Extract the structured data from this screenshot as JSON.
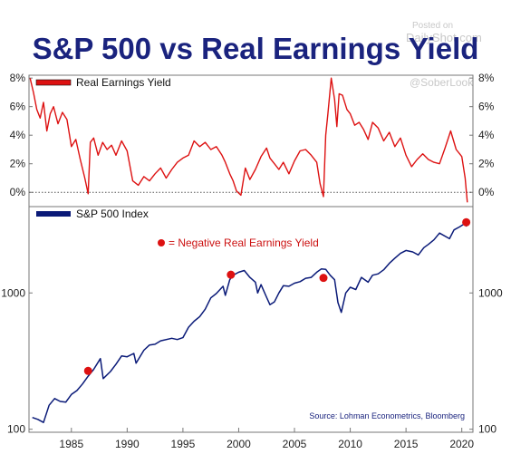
{
  "chart_data": {
    "title": "S&P 500 vs Real Earnings Yield",
    "watermark": {
      "line1": "Posted on",
      "line2": "DailyShot.com",
      "line3": "@SoberLook"
    },
    "source": "Source: Lohman Econometrics, Bloomberg",
    "x_ticks": [
      "1985",
      "1990",
      "1995",
      "2000",
      "2005",
      "2010",
      "2015",
      "2020"
    ],
    "xlim": [
      1981.2,
      2021.0
    ],
    "colors": {
      "title": "#1a237e",
      "yield": "#dd1111",
      "index": "#0a1a78",
      "marker": "#dd1111"
    },
    "panels": [
      {
        "type": "line",
        "legend": "Real Earnings Yield",
        "y_ticks": [
          "8%",
          "6%",
          "4%",
          "2%",
          "0%"
        ],
        "ylim": [
          -1.0,
          8.2
        ],
        "zero_line": true,
        "series": {
          "x": [
            1981.3,
            1981.6,
            1981.9,
            1982.2,
            1982.5,
            1982.8,
            1983.1,
            1983.4,
            1983.8,
            1984.2,
            1984.6,
            1985.0,
            1985.4,
            1985.8,
            1986.2,
            1986.5,
            1986.7,
            1987.0,
            1987.4,
            1987.8,
            1988.2,
            1988.6,
            1989.0,
            1989.5,
            1990.0,
            1990.5,
            1991.0,
            1991.5,
            1992.0,
            1992.5,
            1993.0,
            1993.5,
            1994.0,
            1994.5,
            1995.0,
            1995.5,
            1996.0,
            1996.5,
            1997.0,
            1997.5,
            1998.0,
            1998.5,
            1998.8,
            1999.2,
            1999.5,
            1999.8,
            2000.2,
            2000.6,
            2001.0,
            2001.5,
            2002.0,
            2002.5,
            2002.8,
            2003.2,
            2003.6,
            2004.0,
            2004.5,
            2005.0,
            2005.5,
            2006.0,
            2006.5,
            2007.0,
            2007.3,
            2007.6,
            2007.8,
            2008.0,
            2008.3,
            2008.6,
            2008.8,
            2009.0,
            2009.3,
            2009.7,
            2010.0,
            2010.4,
            2010.8,
            2011.2,
            2011.6,
            2012.0,
            2012.5,
            2013.0,
            2013.5,
            2014.0,
            2014.5,
            2015.0,
            2015.5,
            2016.0,
            2016.5,
            2017.0,
            2017.5,
            2018.0,
            2018.5,
            2019.0,
            2019.5,
            2020.0,
            2020.3,
            2020.5
          ],
          "y": [
            8.0,
            7.0,
            5.8,
            5.2,
            6.3,
            4.3,
            5.5,
            6.0,
            4.8,
            5.6,
            5.1,
            3.2,
            3.7,
            2.3,
            1.0,
            -0.1,
            3.5,
            3.8,
            2.6,
            3.5,
            3.0,
            3.3,
            2.6,
            3.6,
            2.9,
            0.8,
            0.5,
            1.1,
            0.8,
            1.3,
            1.7,
            1.0,
            1.6,
            2.1,
            2.4,
            2.6,
            3.6,
            3.2,
            3.5,
            3.0,
            3.2,
            2.6,
            2.1,
            1.3,
            0.8,
            0.1,
            -0.2,
            1.7,
            0.9,
            1.6,
            2.5,
            3.1,
            2.4,
            2.0,
            1.6,
            2.1,
            1.3,
            2.2,
            2.9,
            3.0,
            2.6,
            2.1,
            0.6,
            -0.3,
            4.0,
            5.5,
            8.0,
            6.5,
            4.6,
            6.9,
            6.8,
            5.8,
            5.5,
            4.7,
            4.9,
            4.4,
            3.7,
            4.9,
            4.5,
            3.6,
            4.2,
            3.2,
            3.8,
            2.6,
            1.8,
            2.3,
            2.7,
            2.3,
            2.1,
            2.0,
            3.1,
            4.3,
            3.0,
            2.5,
            1.0,
            -0.7
          ]
        }
      },
      {
        "type": "line",
        "scale": "log",
        "legend": "S&P 500 Index",
        "y_ticks": [
          "1000",
          "100"
        ],
        "ylim": [
          95,
          4300
        ],
        "annotation": "= Negative Real Earnings Yield",
        "series": {
          "x": [
            1981.5,
            1982.0,
            1982.5,
            1983.0,
            1983.5,
            1984.0,
            1984.5,
            1985.0,
            1985.5,
            1986.0,
            1986.5,
            1987.0,
            1987.6,
            1987.85,
            1988.5,
            1989.0,
            1989.5,
            1990.0,
            1990.6,
            1990.8,
            1991.5,
            1992.0,
            1992.5,
            1993.0,
            1994.0,
            1994.5,
            1995.0,
            1995.5,
            1996.0,
            1996.5,
            1997.0,
            1997.5,
            1998.0,
            1998.6,
            1998.8,
            1999.2,
            1999.5,
            2000.0,
            2000.5,
            2001.0,
            2001.5,
            2001.7,
            2002.0,
            2002.5,
            2002.8,
            2003.2,
            2003.6,
            2004.0,
            2004.5,
            2005.0,
            2005.5,
            2006.0,
            2006.5,
            2007.0,
            2007.4,
            2007.8,
            2008.2,
            2008.6,
            2008.9,
            2009.2,
            2009.6,
            2010.0,
            2010.5,
            2011.0,
            2011.6,
            2012.0,
            2012.5,
            2013.0,
            2013.5,
            2014.0,
            2014.5,
            2015.0,
            2015.6,
            2016.1,
            2016.6,
            2017.0,
            2017.5,
            2018.0,
            2018.9,
            2019.3,
            2019.8,
            2020.2,
            2020.4,
            2020.7
          ],
          "y": [
            122,
            118,
            112,
            150,
            168,
            160,
            158,
            180,
            192,
            215,
            245,
            275,
            330,
            235,
            265,
            300,
            345,
            340,
            360,
            305,
            380,
            415,
            420,
            445,
            465,
            455,
            470,
            560,
            620,
            670,
            760,
            920,
            990,
            1120,
            960,
            1250,
            1350,
            1420,
            1460,
            1300,
            1200,
            1000,
            1150,
            930,
            820,
            860,
            1000,
            1130,
            1120,
            1180,
            1210,
            1280,
            1300,
            1420,
            1500,
            1490,
            1350,
            1250,
            850,
            720,
            1000,
            1100,
            1060,
            1300,
            1200,
            1350,
            1380,
            1480,
            1650,
            1800,
            1950,
            2050,
            2000,
            1900,
            2150,
            2270,
            2450,
            2750,
            2500,
            2900,
            3050,
            3200,
            3100,
            3400
          ]
        },
        "markers": {
          "x": [
            1986.5,
            1999.3,
            2007.6,
            2020.4
          ],
          "y": [
            268,
            1360,
            1290,
            3300
          ]
        }
      }
    ]
  }
}
